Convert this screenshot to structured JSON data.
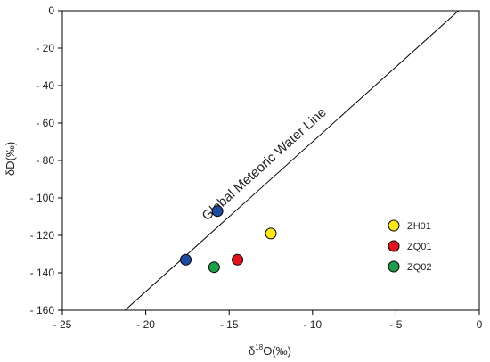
{
  "chart_data": {
    "type": "scatter",
    "title": "",
    "xlabel_symbol": "δ",
    "xlabel_sup": "18",
    "xlabel_rest": "O(‰)",
    "ylabel": "δD(‰)",
    "xlim": [
      -25,
      0
    ],
    "ylim": [
      -160,
      0
    ],
    "xticks": [
      -25,
      -20,
      -15,
      -10,
      -5,
      0
    ],
    "xtick_labels": [
      "- 25",
      "- 20",
      "- 15",
      "- 10",
      "- 5",
      "0"
    ],
    "yticks": [
      0,
      -20,
      -40,
      -60,
      -80,
      -100,
      -120,
      -140,
      -160
    ],
    "ytick_labels": [
      "0",
      "- 20",
      "- 40",
      "- 60",
      "- 80",
      "- 100",
      "- 120",
      "- 140",
      "- 160"
    ],
    "grid": false,
    "legend_position": "right",
    "reference_line": {
      "label": "Global Meteoric Water Line",
      "slope": 8,
      "intercept": 10
    },
    "series": [
      {
        "name": "ZH01",
        "color": "#ffe81a",
        "points": [
          {
            "x": -12.5,
            "y": -119
          }
        ]
      },
      {
        "name": "ZQ01",
        "color": "#e0141e",
        "points": [
          {
            "x": -14.5,
            "y": -133
          }
        ]
      },
      {
        "name": "ZQ02",
        "color": "#1e9e4a",
        "points": [
          {
            "x": -15.9,
            "y": -137
          }
        ]
      },
      {
        "name": "",
        "color": "#1f4aa0",
        "points": [
          {
            "x": -15.7,
            "y": -107
          },
          {
            "x": -17.6,
            "y": -133
          }
        ]
      }
    ]
  }
}
